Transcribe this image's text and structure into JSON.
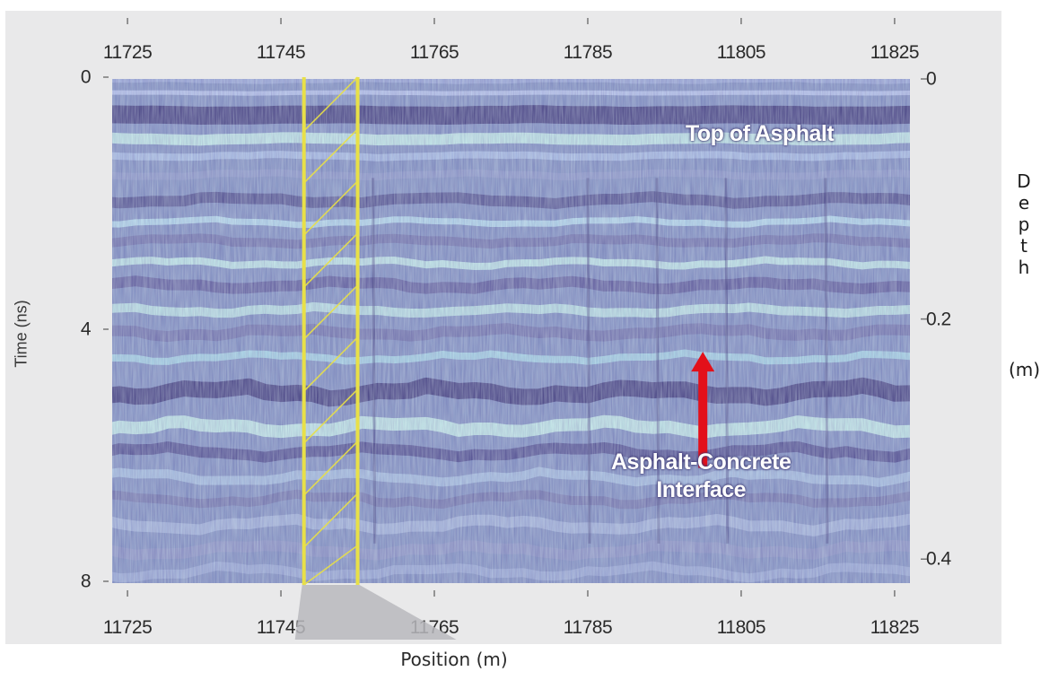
{
  "chart_data": {
    "type": "heatmap",
    "title": "",
    "xlabel": "Position (m)",
    "ylabel": "Time (ns)",
    "y2label": "Depth",
    "y2unit": "(m)",
    "x_ticks": [
      "11725",
      "11745",
      "11765",
      "11785",
      "11805",
      "11825"
    ],
    "x_tick_values": [
      11725,
      11745,
      11765,
      11785,
      11805,
      11825
    ],
    "xlim": [
      11723,
      11827
    ],
    "y_ticks": [
      "0",
      "4",
      "8"
    ],
    "y_tick_values": [
      0,
      4,
      8
    ],
    "ylim": [
      0,
      8
    ],
    "y2_ticks": [
      "0",
      "0.2",
      "0.4"
    ],
    "y2_tick_values": [
      0,
      0.2,
      0.4
    ],
    "y2lim": [
      0,
      0.42
    ],
    "annotations": [
      {
        "text": "Top of Asphalt",
        "x": 11808,
        "y": 0.95
      },
      {
        "text_lines": [
          "Asphalt-Concrete",
          "Interface"
        ],
        "arrow_x": 11800,
        "arrow_from_y": 6.4,
        "arrow_to_y": 4.3
      }
    ],
    "highlight_band": {
      "x_from": 11748,
      "x_to": 11755,
      "color": "#e8e048"
    },
    "reflector_bands": [
      {
        "name": "Top of Asphalt",
        "time_ns": 0.6,
        "color": "#3a3174"
      },
      {
        "name": "Asphalt-Concrete Interface",
        "time_ns": 5.0,
        "color": "#2e2466"
      }
    ],
    "colors": {
      "background": "#7e8cc0",
      "dark": "#3a3174",
      "light": "#c8f1ea",
      "arrow": "#e3101a"
    }
  }
}
